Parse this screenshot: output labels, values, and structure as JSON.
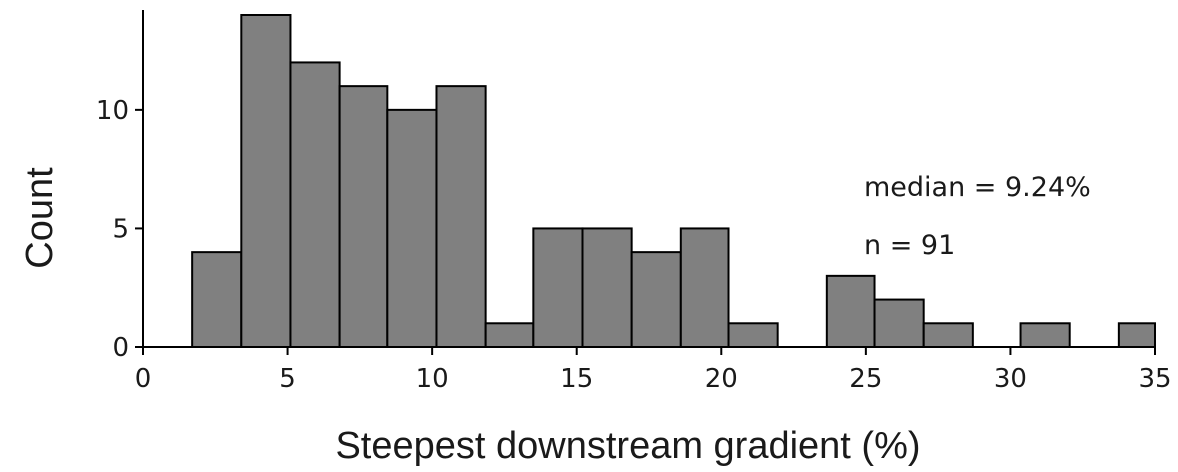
{
  "chart_data": {
    "type": "bar",
    "xlabel": "Steepest downstream gradient (%)",
    "ylabel": "Count",
    "xlim": [
      0,
      35
    ],
    "ylim": [
      0,
      14
    ],
    "x_ticks": [
      "0",
      "5",
      "10",
      "15",
      "20",
      "25",
      "30",
      "35"
    ],
    "y_ticks": [
      "0",
      "5",
      "10"
    ],
    "bins": [
      {
        "start": 1.7,
        "end": 3.4,
        "count": 4
      },
      {
        "start": 3.4,
        "end": 5.1,
        "count": 14
      },
      {
        "start": 5.1,
        "end": 6.8,
        "count": 12
      },
      {
        "start": 6.8,
        "end": 8.45,
        "count": 11
      },
      {
        "start": 8.45,
        "end": 10.15,
        "count": 10
      },
      {
        "start": 10.15,
        "end": 11.85,
        "count": 11
      },
      {
        "start": 11.85,
        "end": 13.5,
        "count": 1
      },
      {
        "start": 13.5,
        "end": 15.2,
        "count": 5
      },
      {
        "start": 15.2,
        "end": 16.9,
        "count": 5
      },
      {
        "start": 16.9,
        "end": 18.6,
        "count": 4
      },
      {
        "start": 18.6,
        "end": 20.25,
        "count": 5
      },
      {
        "start": 20.25,
        "end": 21.95,
        "count": 1
      },
      {
        "start": 21.95,
        "end": 23.65,
        "count": 0
      },
      {
        "start": 23.65,
        "end": 25.3,
        "count": 3
      },
      {
        "start": 25.3,
        "end": 27.0,
        "count": 2
      },
      {
        "start": 27.0,
        "end": 28.7,
        "count": 1
      },
      {
        "start": 28.7,
        "end": 30.35,
        "count": 0
      },
      {
        "start": 30.35,
        "end": 32.05,
        "count": 1
      },
      {
        "start": 32.05,
        "end": 33.75,
        "count": 0
      },
      {
        "start": 33.75,
        "end": 35.0,
        "count": 1
      }
    ],
    "annotations": [
      "median = 9.24%",
      "n = 91"
    ],
    "bar_color": "#808080",
    "edge_color": "#000000",
    "grid": false
  }
}
